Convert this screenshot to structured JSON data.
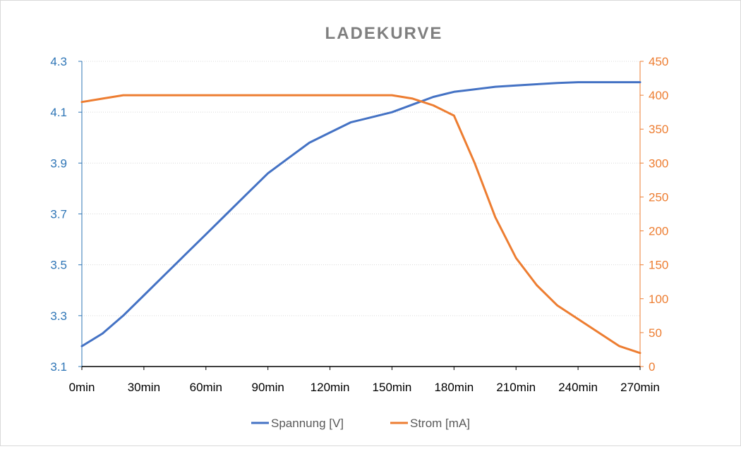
{
  "chart_data": {
    "type": "line",
    "title": "LADEKURVE",
    "categories": [
      "0min",
      "30min",
      "60min",
      "90min",
      "120min",
      "150min",
      "180min",
      "210min",
      "240min",
      "270min"
    ],
    "x": [
      0,
      10,
      20,
      30,
      40,
      50,
      60,
      70,
      80,
      90,
      100,
      110,
      120,
      130,
      140,
      150,
      160,
      170,
      180,
      190,
      200,
      210,
      220,
      230,
      240,
      250,
      260,
      270
    ],
    "y_left": {
      "min": 3.1,
      "max": 4.3,
      "ticks": [
        "3.1",
        "3.3",
        "3.5",
        "3.7",
        "3.9",
        "4.1",
        "4.3"
      ],
      "tick_values": [
        3.1,
        3.3,
        3.5,
        3.7,
        3.9,
        4.1,
        4.3
      ],
      "color": "#2e75b6"
    },
    "y_right": {
      "min": 0,
      "max": 450,
      "ticks": [
        "0",
        "50",
        "100",
        "150",
        "200",
        "250",
        "300",
        "350",
        "400",
        "450"
      ],
      "tick_values": [
        0,
        50,
        100,
        150,
        200,
        250,
        300,
        350,
        400,
        450
      ],
      "color": "#ed7d31"
    },
    "grid": true,
    "legend_position": "bottom",
    "series": [
      {
        "name": "Spannung [V]",
        "axis": "left",
        "color": "#4472c4",
        "values": [
          3.18,
          3.23,
          3.3,
          3.38,
          3.46,
          3.54,
          3.62,
          3.7,
          3.78,
          3.86,
          3.92,
          3.98,
          4.02,
          4.06,
          4.08,
          4.1,
          4.13,
          4.16,
          4.18,
          4.19,
          4.2,
          4.205,
          4.21,
          4.215,
          4.218,
          4.218,
          4.218,
          4.218
        ]
      },
      {
        "name": "Strom [mA]",
        "axis": "right",
        "color": "#ed7d31",
        "values": [
          390,
          395,
          400,
          400,
          400,
          400,
          400,
          400,
          400,
          400,
          400,
          400,
          400,
          400,
          400,
          400,
          395,
          385,
          370,
          300,
          220,
          160,
          120,
          90,
          70,
          50,
          30,
          20
        ]
      }
    ]
  }
}
